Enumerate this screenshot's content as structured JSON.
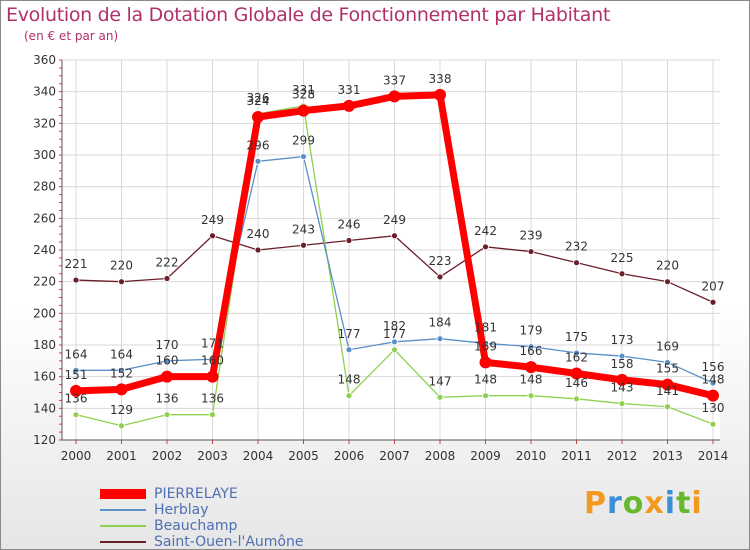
{
  "header": {
    "title": "Evolution de la Dotation Globale de Fonctionnement par Habitant",
    "subtitle": "(en € et par an)"
  },
  "logo": {
    "text": "Proxiti"
  },
  "chart_data": {
    "type": "line",
    "title": "Evolution de la Dotation Globale de Fonctionnement par Habitant",
    "subtitle": "(en € et par an)",
    "x": [
      2000,
      2001,
      2002,
      2003,
      2004,
      2005,
      2006,
      2007,
      2008,
      2009,
      2010,
      2011,
      2012,
      2013,
      2014
    ],
    "ylim": [
      120,
      360
    ],
    "yticks": [
      120,
      140,
      160,
      180,
      200,
      220,
      240,
      260,
      280,
      300,
      320,
      340,
      360
    ],
    "grid": true,
    "legend_position": "bottom-left",
    "series": [
      {
        "name": "Saint-Ouen-l'Aumône",
        "color": "#6b1f2b",
        "width": 1.3,
        "values": [
          221,
          220,
          222,
          249,
          240,
          243,
          246,
          249,
          223,
          242,
          239,
          232,
          225,
          220,
          207
        ]
      },
      {
        "name": "Beauchamp",
        "color": "#8fd14f",
        "width": 1.3,
        "values": [
          136,
          129,
          136,
          136,
          326,
          331,
          148,
          177,
          147,
          148,
          148,
          146,
          143,
          141,
          130
        ]
      },
      {
        "name": "Herblay",
        "color": "#5b8fc7",
        "width": 1.3,
        "values": [
          164,
          164,
          170,
          171,
          296,
          299,
          177,
          182,
          184,
          181,
          179,
          175,
          173,
          169,
          156
        ]
      },
      {
        "name": "PIERRELAYE",
        "color": "#ff0000",
        "width": 7,
        "values": [
          151,
          152,
          160,
          160,
          324,
          328,
          331,
          337,
          338,
          169,
          166,
          162,
          158,
          155,
          148
        ]
      }
    ]
  }
}
